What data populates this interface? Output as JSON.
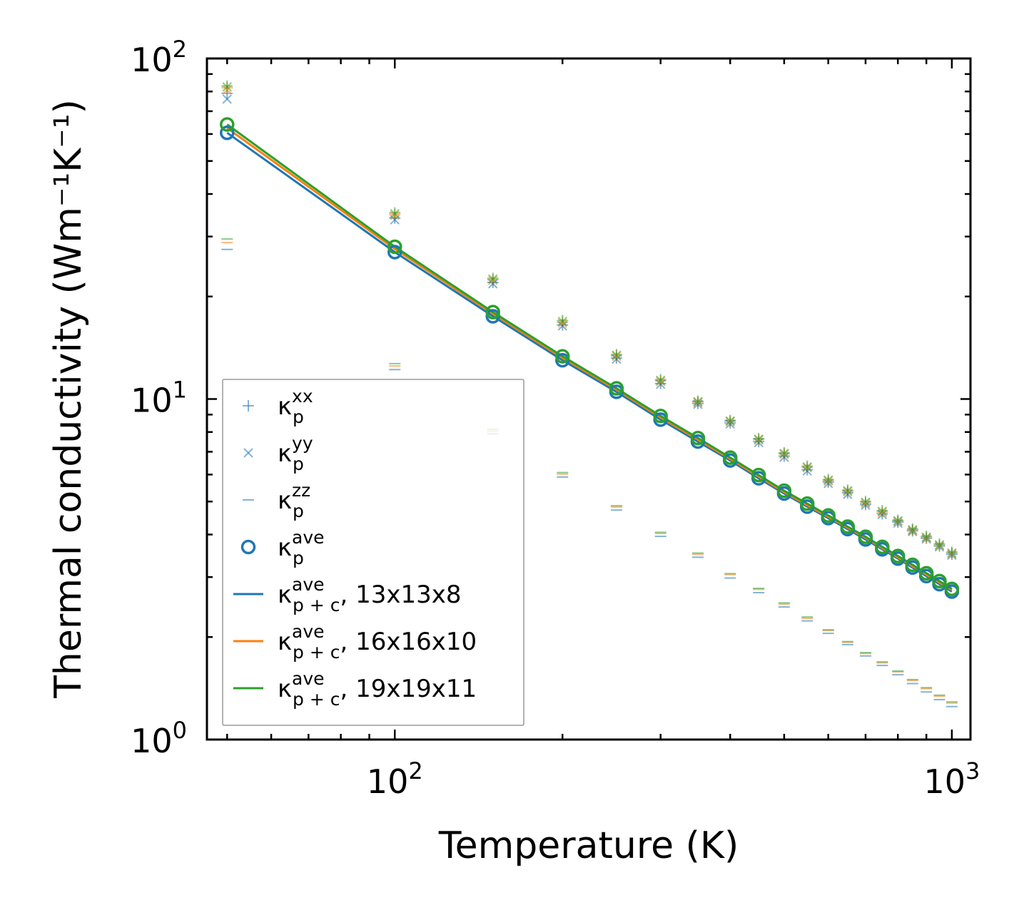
{
  "chart_data": {
    "type": "scatter",
    "xscale": "log",
    "yscale": "log",
    "xlim": [
      46,
      1080
    ],
    "ylim": [
      1,
      100
    ],
    "xlabel": "Temperature (K)",
    "ylabel": "Thermal conductivity (Wm⁻¹K⁻¹)",
    "xticks": [
      {
        "base": "10",
        "exp": "2"
      },
      {
        "base": "10",
        "exp": "3"
      }
    ],
    "yticks": [
      {
        "base": "10",
        "exp": "0"
      },
      {
        "base": "10",
        "exp": "1"
      },
      {
        "base": "10",
        "exp": "2"
      }
    ],
    "legend_position": "lower-left",
    "colors": {
      "blue": "#1f77b4",
      "orange": "#ff7f0e",
      "green": "#2ca02c"
    },
    "x": [
      50,
      100,
      150,
      200,
      250,
      300,
      350,
      400,
      450,
      500,
      550,
      600,
      650,
      700,
      750,
      800,
      850,
      900,
      950,
      1000
    ],
    "series": [
      {
        "name": "κp^xx 13x13x8",
        "marker": "plus",
        "color": "#1f77b4",
        "values": [
          79,
          34,
          22,
          16.5,
          13.2,
          11.1,
          9.7,
          8.5,
          7.5,
          6.8,
          6.2,
          5.7,
          5.3,
          4.9,
          4.6,
          4.35,
          4.1,
          3.9,
          3.7,
          3.5
        ]
      },
      {
        "name": "κp^xx 16x16x10",
        "marker": "plus",
        "color": "#ff7f0e",
        "values": [
          82,
          34.8,
          22.4,
          16.8,
          13.4,
          11.3,
          9.8,
          8.6,
          7.6,
          6.9,
          6.3,
          5.75,
          5.35,
          4.95,
          4.65,
          4.38,
          4.12,
          3.92,
          3.72,
          3.52
        ]
      },
      {
        "name": "κp^xx 19x19x11",
        "marker": "plus",
        "color": "#2ca02c",
        "values": [
          83,
          35.2,
          22.6,
          17,
          13.5,
          11.4,
          9.85,
          8.65,
          7.65,
          6.95,
          6.35,
          5.8,
          5.4,
          5,
          4.7,
          4.4,
          4.15,
          3.95,
          3.75,
          3.55
        ]
      },
      {
        "name": "κp^yy 13x13x8",
        "marker": "x",
        "color": "#1f77b4",
        "values": [
          76,
          33.6,
          21.8,
          16.4,
          13.1,
          11.05,
          9.65,
          8.45,
          7.45,
          6.75,
          6.15,
          5.65,
          5.25,
          4.88,
          4.58,
          4.32,
          4.08,
          3.88,
          3.68,
          3.48
        ]
      },
      {
        "name": "κp^yy 16x16x10",
        "marker": "x",
        "color": "#ff7f0e",
        "values": [
          81,
          34.6,
          22.3,
          16.7,
          13.35,
          11.25,
          9.78,
          8.58,
          7.58,
          6.88,
          6.28,
          5.74,
          5.34,
          4.94,
          4.64,
          4.37,
          4.11,
          3.91,
          3.71,
          3.51
        ]
      },
      {
        "name": "κp^yy 19x19x11",
        "marker": "x",
        "color": "#2ca02c",
        "values": [
          82.5,
          35,
          22.5,
          16.9,
          13.45,
          11.35,
          9.82,
          8.62,
          7.62,
          6.92,
          6.32,
          5.78,
          5.38,
          4.98,
          4.68,
          4.39,
          4.13,
          3.93,
          3.73,
          3.53
        ]
      },
      {
        "name": "κp^zz 13x13x8",
        "marker": "hline",
        "color": "#1f77b4",
        "values": [
          27.5,
          12.2,
          7.9,
          5.9,
          4.72,
          3.95,
          3.43,
          2.98,
          2.7,
          2.45,
          2.23,
          2.05,
          1.9,
          1.76,
          1.65,
          1.55,
          1.46,
          1.38,
          1.31,
          1.25
        ]
      },
      {
        "name": "κp^zz 16x16x10",
        "marker": "hline",
        "color": "#ff7f0e",
        "values": [
          28.8,
          12.5,
          8.05,
          6.02,
          4.82,
          4.03,
          3.5,
          3.05,
          2.76,
          2.5,
          2.27,
          2.09,
          1.93,
          1.79,
          1.68,
          1.58,
          1.49,
          1.41,
          1.34,
          1.28
        ]
      },
      {
        "name": "κp^zz 19x19x11",
        "marker": "hline",
        "color": "#2ca02c",
        "values": [
          29.5,
          12.7,
          8.15,
          6.08,
          4.86,
          4.06,
          3.53,
          3.07,
          2.78,
          2.52,
          2.29,
          2.1,
          1.94,
          1.8,
          1.69,
          1.59,
          1.5,
          1.42,
          1.35,
          1.29
        ]
      },
      {
        "name": "κp^ave 13x13x8",
        "marker": "circle",
        "color": "#1f77b4",
        "values": [
          60.5,
          27.0,
          17.5,
          13.0,
          10.5,
          8.7,
          7.5,
          6.6,
          5.85,
          5.28,
          4.83,
          4.47,
          4.15,
          3.87,
          3.62,
          3.4,
          3.2,
          3.02,
          2.86,
          2.72
        ]
      },
      {
        "name": "κp^ave 19x19x11",
        "marker": "circle",
        "color": "#2ca02c",
        "values": [
          64.0,
          28.0,
          18.0,
          13.35,
          10.75,
          8.92,
          7.68,
          6.73,
          5.98,
          5.38,
          4.93,
          4.55,
          4.22,
          3.94,
          3.68,
          3.46,
          3.26,
          3.08,
          2.92,
          2.77
        ]
      },
      {
        "name": "κp+c^ave 13x13x8",
        "marker": "line",
        "color": "#1f77b4",
        "values": [
          60.5,
          27.0,
          17.5,
          13.0,
          10.5,
          8.7,
          7.5,
          6.6,
          5.85,
          5.28,
          4.83,
          4.47,
          4.15,
          3.87,
          3.62,
          3.4,
          3.2,
          3.02,
          2.86,
          2.72
        ]
      },
      {
        "name": "κp+c^ave 16x16x10",
        "marker": "line",
        "color": "#ff7f0e",
        "values": [
          62.5,
          27.6,
          17.8,
          13.2,
          10.65,
          8.83,
          7.6,
          6.67,
          5.92,
          5.33,
          4.88,
          4.51,
          4.19,
          3.91,
          3.65,
          3.43,
          3.23,
          3.05,
          2.89,
          2.75
        ]
      },
      {
        "name": "κp+c^ave 19x19x11",
        "marker": "line",
        "color": "#2ca02c",
        "values": [
          64.0,
          28.0,
          18.0,
          13.35,
          10.75,
          8.92,
          7.68,
          6.73,
          5.98,
          5.38,
          4.93,
          4.55,
          4.22,
          3.94,
          3.68,
          3.46,
          3.26,
          3.08,
          2.92,
          2.77
        ]
      }
    ],
    "legend": [
      {
        "marker": "plus",
        "color": "#1f77b4",
        "symbol": "κ",
        "sub": "p",
        "sup": "xx",
        "suffix": ""
      },
      {
        "marker": "x",
        "color": "#1f77b4",
        "symbol": "κ",
        "sub": "p",
        "sup": "yy",
        "suffix": ""
      },
      {
        "marker": "hline",
        "color": "#1f77b4",
        "symbol": "κ",
        "sub": "p",
        "sup": "zz",
        "suffix": ""
      },
      {
        "marker": "circle",
        "color": "#1f77b4",
        "symbol": "κ",
        "sub": "p",
        "sup": "ave",
        "suffix": ""
      },
      {
        "marker": "line",
        "color": "#1f77b4",
        "symbol": "κ",
        "sub": "p + c",
        "sup": "ave",
        "suffix": ", 13x13x8"
      },
      {
        "marker": "line",
        "color": "#ff7f0e",
        "symbol": "κ",
        "sub": "p + c",
        "sup": "ave",
        "suffix": ", 16x16x10"
      },
      {
        "marker": "line",
        "color": "#2ca02c",
        "symbol": "κ",
        "sub": "p + c",
        "sup": "ave",
        "suffix": ", 19x19x11"
      }
    ]
  }
}
